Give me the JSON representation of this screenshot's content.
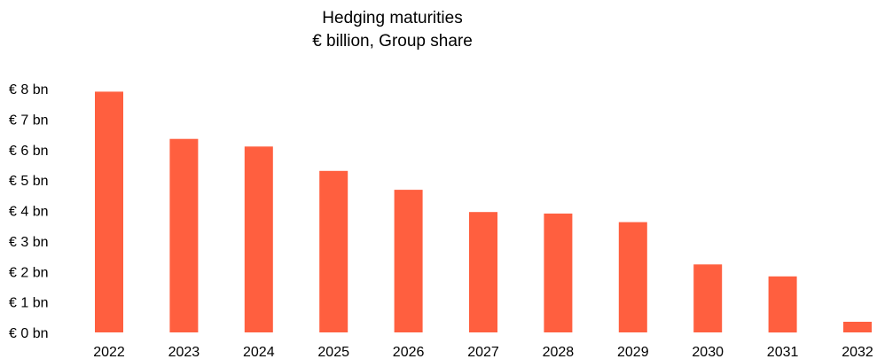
{
  "chart_data": {
    "type": "bar",
    "title": "Hedging maturities",
    "subtitle": "€ billion, Group share",
    "categories": [
      "2022",
      "2023",
      "2024",
      "2025",
      "2026",
      "2027",
      "2028",
      "2029",
      "2030",
      "2031",
      "2032"
    ],
    "values": [
      7.9,
      6.35,
      6.1,
      5.3,
      4.68,
      3.95,
      3.9,
      3.62,
      2.23,
      1.84,
      0.35
    ],
    "ylim": [
      0,
      8
    ],
    "yticks": [
      0,
      1,
      2,
      3,
      4,
      5,
      6,
      7,
      8
    ],
    "ytick_labels": [
      "€ 0 bn",
      "€ 1 bn",
      "€ 2 bn",
      "€ 3 bn",
      "€ 4 bn",
      "€ 5 bn",
      "€ 6 bn",
      "€ 7 bn",
      "€ 8 bn"
    ],
    "xlabel": "",
    "ylabel": "",
    "grid": false,
    "legend": "none",
    "bar_color": "#ff5f3f"
  }
}
